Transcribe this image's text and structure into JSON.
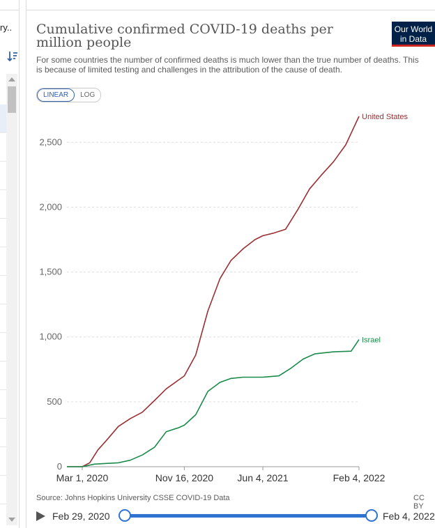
{
  "side_panel": {
    "label": "ry..",
    "sort_icon": "sort-descending-icon"
  },
  "header": {
    "title": "Cumulative confirmed COVID-19 deaths per million people",
    "subtitle": "For some countries the number of confirmed deaths is much lower than the true number of deaths. This is because of limited testing and challenges in the attribution of the cause of death.",
    "logo_line1": "Our World",
    "logo_line2": "in Data"
  },
  "scale_toggle": {
    "linear": "LINEAR",
    "log": "LOG",
    "active": "LINEAR"
  },
  "footer": {
    "source": "Source: Johns Hopkins University CSSE COVID-19 Data",
    "license": "CC BY"
  },
  "timeline": {
    "start_label": "Feb 29, 2020",
    "end_label": "Feb 4, 2022",
    "play_icon": "play-icon"
  },
  "colors": {
    "united_states": "#9a2f33",
    "israel": "#1a8a4a",
    "gridline": "#dddddd",
    "slider": "#2e73d0"
  },
  "chart_data": {
    "type": "line",
    "title": "Cumulative confirmed COVID-19 deaths per million people",
    "xlabel": "",
    "ylabel": "",
    "x_axis": {
      "type": "date",
      "range": [
        "2020-01-22",
        "2022-02-04"
      ],
      "ticks": [
        {
          "date": "2020-03-01",
          "label": "Mar 1, 2020"
        },
        {
          "date": "2020-11-16",
          "label": "Nov 16, 2020"
        },
        {
          "date": "2021-06-04",
          "label": "Jun 4, 2021"
        },
        {
          "date": "2022-02-04",
          "label": "Feb 4, 2022"
        }
      ]
    },
    "y_axis": {
      "range": [
        0,
        2700
      ],
      "ticks": [
        {
          "value": 0,
          "label": "0"
        },
        {
          "value": 500,
          "label": "500"
        },
        {
          "value": 1000,
          "label": "1,000"
        },
        {
          "value": 1500,
          "label": "1,500"
        },
        {
          "value": 2000,
          "label": "2,000"
        },
        {
          "value": 2500,
          "label": "2,500"
        }
      ]
    },
    "grid": true,
    "series": [
      {
        "name": "United States",
        "points": [
          [
            "2020-01-22",
            0
          ],
          [
            "2020-03-01",
            0
          ],
          [
            "2020-03-20",
            30
          ],
          [
            "2020-04-10",
            130
          ],
          [
            "2020-05-01",
            200
          ],
          [
            "2020-06-01",
            310
          ],
          [
            "2020-07-01",
            370
          ],
          [
            "2020-08-01",
            420
          ],
          [
            "2020-09-01",
            510
          ],
          [
            "2020-10-01",
            600
          ],
          [
            "2020-11-16",
            700
          ],
          [
            "2020-12-15",
            860
          ],
          [
            "2021-01-15",
            1200
          ],
          [
            "2021-02-15",
            1450
          ],
          [
            "2021-03-15",
            1590
          ],
          [
            "2021-04-15",
            1680
          ],
          [
            "2021-05-15",
            1750
          ],
          [
            "2021-06-04",
            1780
          ],
          [
            "2021-07-01",
            1800
          ],
          [
            "2021-08-01",
            1830
          ],
          [
            "2021-09-01",
            1980
          ],
          [
            "2021-10-01",
            2140
          ],
          [
            "2021-11-01",
            2250
          ],
          [
            "2021-12-01",
            2350
          ],
          [
            "2022-01-01",
            2480
          ],
          [
            "2022-02-04",
            2700
          ]
        ]
      },
      {
        "name": "Israel",
        "points": [
          [
            "2020-01-22",
            0
          ],
          [
            "2020-03-01",
            0
          ],
          [
            "2020-04-01",
            20
          ],
          [
            "2020-05-01",
            25
          ],
          [
            "2020-06-01",
            30
          ],
          [
            "2020-07-01",
            50
          ],
          [
            "2020-08-01",
            90
          ],
          [
            "2020-09-01",
            150
          ],
          [
            "2020-10-01",
            270
          ],
          [
            "2020-11-01",
            300
          ],
          [
            "2020-11-16",
            320
          ],
          [
            "2020-12-15",
            400
          ],
          [
            "2021-01-15",
            580
          ],
          [
            "2021-02-15",
            650
          ],
          [
            "2021-03-15",
            680
          ],
          [
            "2021-04-15",
            690
          ],
          [
            "2021-06-04",
            690
          ],
          [
            "2021-07-15",
            700
          ],
          [
            "2021-08-15",
            760
          ],
          [
            "2021-09-15",
            830
          ],
          [
            "2021-10-15",
            870
          ],
          [
            "2021-12-01",
            885
          ],
          [
            "2022-01-15",
            890
          ],
          [
            "2022-02-04",
            980
          ]
        ]
      }
    ]
  }
}
